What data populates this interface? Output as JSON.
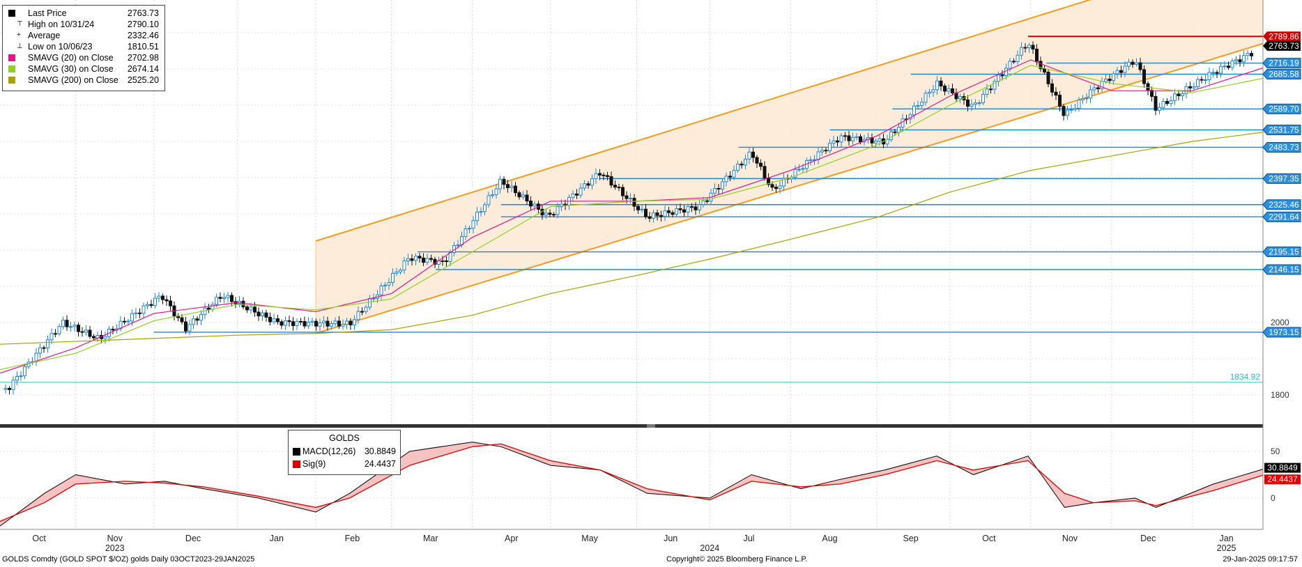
{
  "legend": {
    "items": [
      {
        "name": "Last Price",
        "value": "2763.73",
        "color": "#000000",
        "glyph": ""
      },
      {
        "name": "High on 10/31/24",
        "value": "2790.10",
        "color": "",
        "glyph": "⊤"
      },
      {
        "name": "Average",
        "value": "2332.46",
        "color": "",
        "glyph": "+"
      },
      {
        "name": "Low on 10/06/23",
        "value": "1810.51",
        "color": "",
        "glyph": "⊥"
      },
      {
        "name": "SMAVG (20)  on Close",
        "value": "2702.98",
        "color": "#e5158a"
      },
      {
        "name": "SMAVG (30)  on Close",
        "value": "2674.14",
        "color": "#8fd11e"
      },
      {
        "name": "SMAVG (200)  on Close",
        "value": "2525.20",
        "color": "#a7a200"
      }
    ]
  },
  "macd_legend": {
    "title": "GOLDS",
    "items": [
      {
        "name": "MACD(12,26)",
        "value": "30.8849",
        "color": "#000000"
      },
      {
        "name": "Sig(9)",
        "value": "24.4437",
        "color": "#e00000"
      }
    ]
  },
  "footer": {
    "left": "GOLDS Comdty (GOLD SPOT $/OZ) golds  Daily 03OCT2023-29JAN2025",
    "center": "Copyright© 2025 Bloomberg Finance L.P.",
    "right": "29-Jan-2025 09:17:57"
  },
  "chart_data": [
    {
      "type": "candlestick",
      "title": "GOLDS Comdty (GOLD SPOT $/OZ)",
      "x_range": [
        "2023-10-03",
        "2025-01-29"
      ],
      "y_axis_ticks": [
        1800,
        2000
      ],
      "x_axis": {
        "months": [
          "Oct",
          "Nov",
          "Dec",
          "Jan",
          "Feb",
          "Mar",
          "Apr",
          "May",
          "Jun",
          "Jul",
          "Aug",
          "Sep",
          "Oct",
          "Nov",
          "Dec",
          "Jan"
        ],
        "years": [
          "2023",
          "2024",
          "2025"
        ]
      },
      "last_price": 2763.73,
      "high": {
        "date": "10/31/24",
        "value": 2790.1
      },
      "low": {
        "date": "10/06/23",
        "value": 1810.51
      },
      "average": 2332.46,
      "series": [
        {
          "name": "Last Price",
          "color": "#000000",
          "x": [
            "2023-10-06",
            "2023-10-27",
            "2023-11-10",
            "2023-12-04",
            "2023-12-13",
            "2023-12-27",
            "2024-01-17",
            "2024-02-14",
            "2024-03-08",
            "2024-03-21",
            "2024-04-12",
            "2024-04-30",
            "2024-05-20",
            "2024-06-07",
            "2024-06-27",
            "2024-07-17",
            "2024-07-25",
            "2024-08-20",
            "2024-09-06",
            "2024-09-26",
            "2024-10-10",
            "2024-10-31",
            "2024-11-14",
            "2024-11-25",
            "2024-12-11",
            "2024-12-19",
            "2025-01-10",
            "2025-01-29"
          ],
          "values": [
            1815,
            1995,
            1950,
            2075,
            1985,
            2080,
            2005,
            1995,
            2175,
            2160,
            2390,
            2295,
            2420,
            2295,
            2320,
            2465,
            2360,
            2510,
            2500,
            2665,
            2600,
            2775,
            2570,
            2640,
            2720,
            2585,
            2690,
            2763.73
          ]
        },
        {
          "name": "SMAVG (20)  on Close",
          "color": "#e5158a",
          "x": [
            "2023-10-03",
            "2023-11-01",
            "2023-12-01",
            "2024-01-02",
            "2024-02-01",
            "2024-03-01",
            "2024-04-01",
            "2024-05-01",
            "2024-06-03",
            "2024-07-01",
            "2024-08-01",
            "2024-09-03",
            "2024-10-01",
            "2024-11-01",
            "2024-12-02",
            "2025-01-02",
            "2025-01-29"
          ],
          "values": [
            1860,
            1930,
            2025,
            2055,
            2030,
            2080,
            2235,
            2335,
            2335,
            2345,
            2420,
            2515,
            2625,
            2725,
            2640,
            2640,
            2702.98
          ]
        },
        {
          "name": "SMAVG (30)  on Close",
          "color": "#8fd11e",
          "x": [
            "2023-10-03",
            "2023-11-01",
            "2023-12-01",
            "2024-01-02",
            "2024-02-01",
            "2024-03-01",
            "2024-04-01",
            "2024-05-01",
            "2024-06-03",
            "2024-07-01",
            "2024-08-01",
            "2024-09-03",
            "2024-10-01",
            "2024-11-01",
            "2024-12-02",
            "2025-01-02",
            "2025-01-29"
          ],
          "values": [
            1870,
            1915,
            2005,
            2050,
            2035,
            2065,
            2195,
            2320,
            2335,
            2340,
            2400,
            2490,
            2600,
            2710,
            2660,
            2635,
            2674.14
          ]
        },
        {
          "name": "SMAVG (200)  on Close",
          "color": "#a7a200",
          "x": [
            "2023-10-03",
            "2024-01-02",
            "2024-02-01",
            "2024-03-01",
            "2024-04-01",
            "2024-05-01",
            "2024-06-03",
            "2024-07-01",
            "2024-08-01",
            "2024-09-03",
            "2024-10-01",
            "2024-11-01",
            "2024-12-02",
            "2025-01-02",
            "2025-01-29"
          ],
          "values": [
            1940,
            1965,
            1970,
            1980,
            2020,
            2080,
            2130,
            2175,
            2230,
            2290,
            2360,
            2420,
            2460,
            2500,
            2525.2
          ]
        }
      ],
      "price_labels": [
        2789.86,
        2763.73,
        2716.19,
        2685.58,
        2589.7,
        2531.75,
        2483.73,
        2397.35,
        2325.46,
        2291.64,
        2195.15,
        2146.15,
        1973.15
      ],
      "reference_line": 1834.92,
      "channel": {
        "start": "2024-02-01",
        "end": "2025-01-29"
      }
    },
    {
      "type": "line",
      "title": "GOLDS",
      "y_axis_ticks": [
        0,
        50
      ],
      "series": [
        {
          "name": "MACD(12,26)",
          "color": "#000000",
          "last": 30.8849,
          "x": [
            "2023-10-03",
            "2023-10-20",
            "2023-11-01",
            "2023-11-20",
            "2023-12-05",
            "2023-12-20",
            "2024-01-10",
            "2024-02-01",
            "2024-02-14",
            "2024-03-08",
            "2024-04-01",
            "2024-04-12",
            "2024-05-01",
            "2024-05-20",
            "2024-06-07",
            "2024-07-01",
            "2024-07-17",
            "2024-08-05",
            "2024-08-20",
            "2024-09-06",
            "2024-09-26",
            "2024-10-10",
            "2024-10-31",
            "2024-11-14",
            "2024-11-25",
            "2024-12-11",
            "2024-12-19",
            "2025-01-10",
            "2025-01-29"
          ],
          "values": [
            -30,
            5,
            25,
            15,
            18,
            10,
            0,
            -15,
            5,
            50,
            60,
            55,
            35,
            30,
            5,
            0,
            25,
            10,
            20,
            30,
            45,
            25,
            45,
            -10,
            -5,
            0,
            -10,
            15,
            30.8849
          ]
        },
        {
          "name": "Sig(9)",
          "color": "#e00000",
          "last": 24.4437,
          "x": [
            "2023-10-03",
            "2023-10-20",
            "2023-11-01",
            "2023-11-20",
            "2023-12-05",
            "2023-12-20",
            "2024-01-10",
            "2024-02-01",
            "2024-02-14",
            "2024-03-08",
            "2024-04-01",
            "2024-04-12",
            "2024-05-01",
            "2024-05-20",
            "2024-06-07",
            "2024-07-01",
            "2024-07-17",
            "2024-08-05",
            "2024-08-20",
            "2024-09-06",
            "2024-09-26",
            "2024-10-10",
            "2024-10-31",
            "2024-11-14",
            "2024-11-25",
            "2024-12-11",
            "2024-12-19",
            "2025-01-10",
            "2025-01-29"
          ],
          "values": [
            -25,
            -5,
            15,
            18,
            16,
            12,
            2,
            -10,
            0,
            35,
            55,
            58,
            40,
            30,
            10,
            -2,
            18,
            12,
            15,
            25,
            40,
            30,
            40,
            5,
            -5,
            -3,
            -8,
            8,
            24.4437
          ]
        }
      ]
    }
  ]
}
